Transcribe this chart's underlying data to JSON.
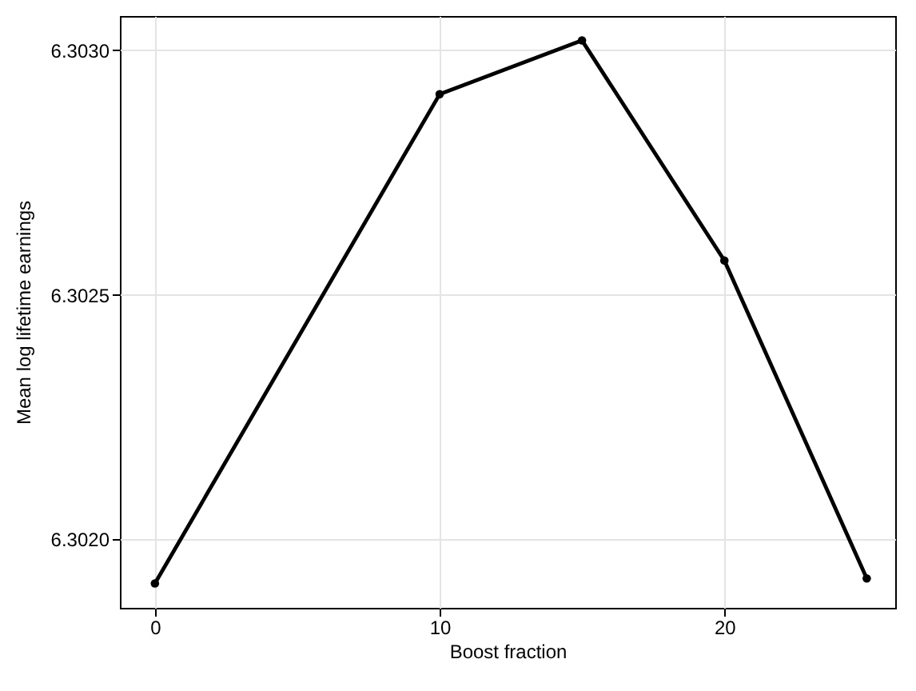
{
  "chart_data": {
    "type": "line",
    "xlabel": "Boost fraction",
    "ylabel": "Mean log lifetime earnings",
    "x": [
      0,
      10,
      15,
      20,
      25
    ],
    "series": [
      {
        "color": "#000000",
        "values": [
          6.30191,
          6.30291,
          6.30302,
          6.30257,
          6.30192
        ]
      }
    ],
    "xlim": [
      -1.23,
      26.0
    ],
    "xticks": [
      0,
      10,
      20
    ],
    "ylim": [
      6.30186,
      6.30307
    ],
    "yticks": [
      {
        "value": 6.302,
        "label": "6.3020"
      },
      {
        "value": 6.3025,
        "label": "6.3025"
      },
      {
        "value": 6.303,
        "label": "6.3030"
      }
    ],
    "grid": true,
    "marker": "circle",
    "line_style": "solid"
  }
}
